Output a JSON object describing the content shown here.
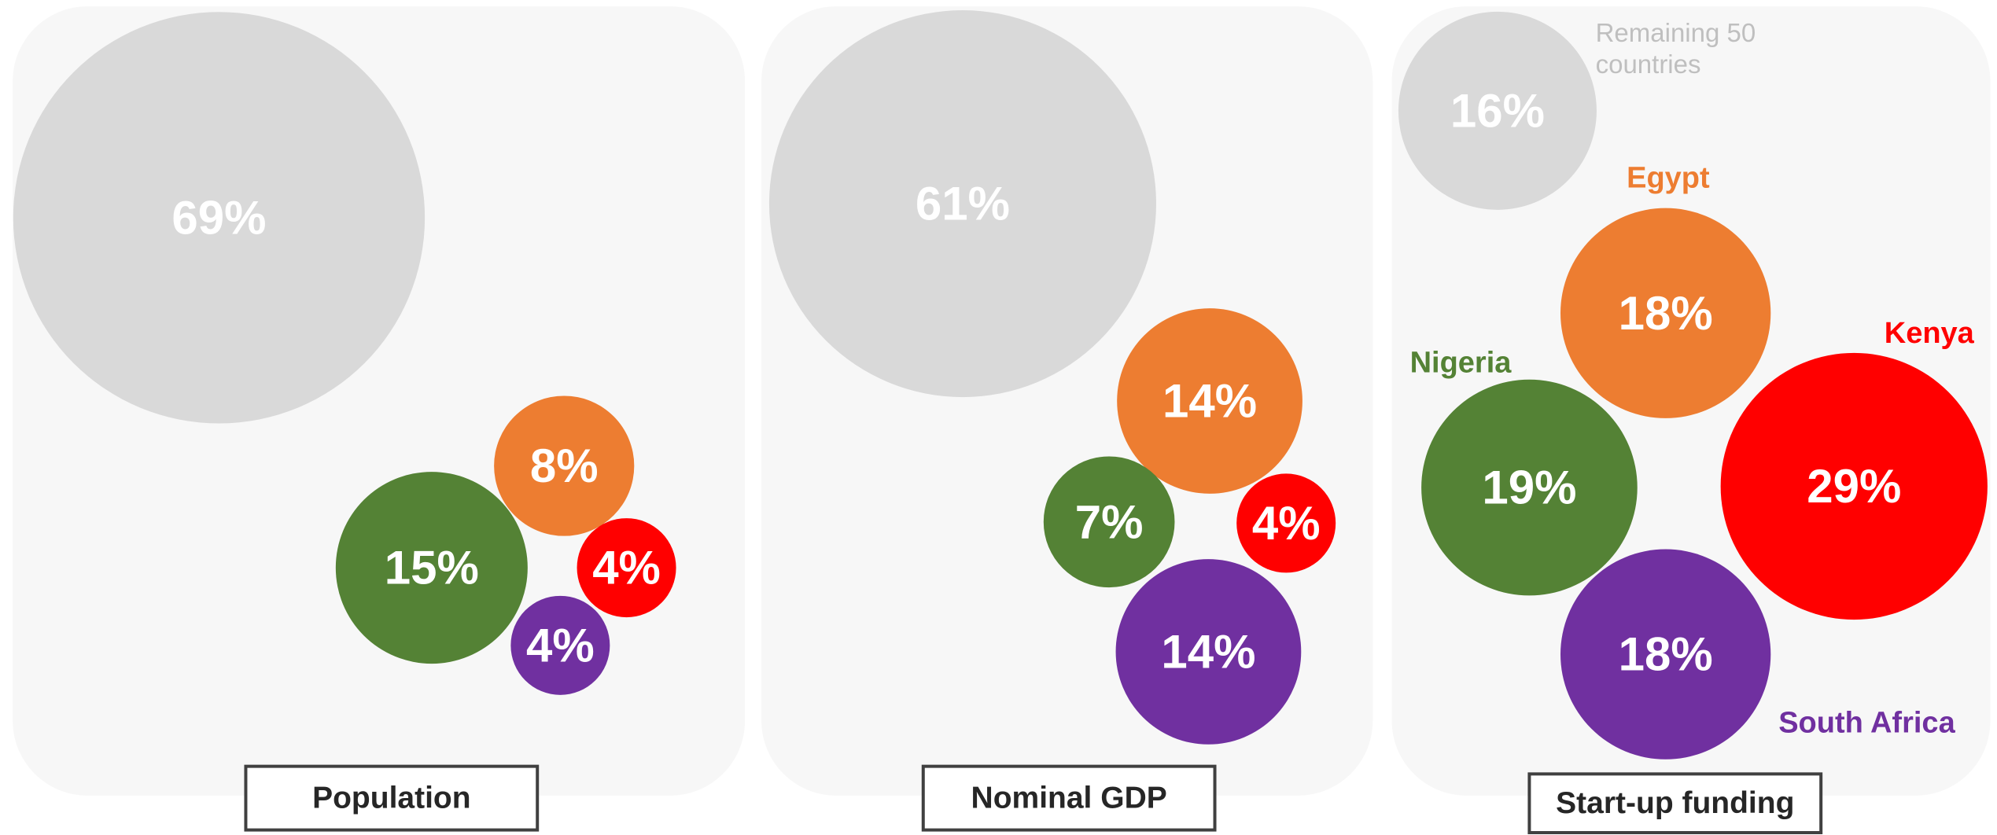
{
  "chart_data": [
    {
      "type": "bubble",
      "title": "Population",
      "values": [
        69,
        8,
        15,
        4,
        4
      ],
      "value_labels": [
        "69%",
        "8%",
        "15%",
        "4%",
        "4%"
      ],
      "colors": [
        "#d9d9d9",
        "#ed7d31",
        "#548235",
        "#ff0000",
        "#7030a0"
      ]
    },
    {
      "type": "bubble",
      "title": "Nominal GDP",
      "values": [
        61,
        14,
        7,
        4,
        14
      ],
      "value_labels": [
        "61%",
        "14%",
        "7%",
        "4%",
        "14%"
      ],
      "colors": [
        "#d9d9d9",
        "#ed7d31",
        "#548235",
        "#ff0000",
        "#7030a0"
      ]
    },
    {
      "type": "bubble",
      "title": "Start-up funding",
      "categories": [
        "Remaining 50 countries",
        "Egypt",
        "Nigeria",
        "Kenya",
        "South Africa"
      ],
      "values": [
        16,
        18,
        19,
        29,
        18
      ],
      "value_labels": [
        "16%",
        "18%",
        "19%",
        "29%",
        "18%"
      ],
      "colors": [
        "#d9d9d9",
        "#ed7d31",
        "#548235",
        "#ff0000",
        "#7030a0"
      ]
    }
  ]
}
